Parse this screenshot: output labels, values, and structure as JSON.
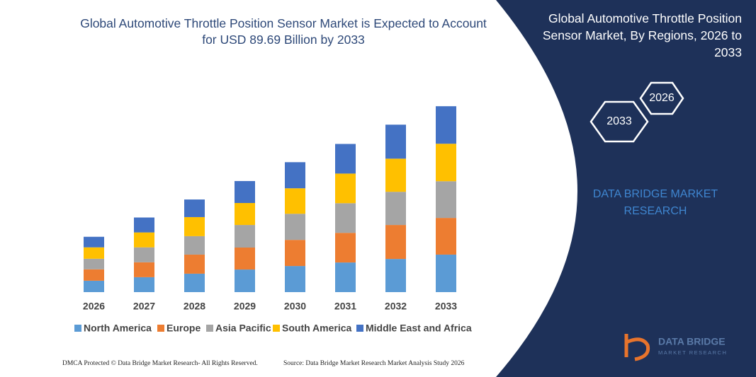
{
  "chart_data": {
    "type": "stacked-bar",
    "title": "Global Automotive Throttle Position Sensor Market is Expected to Account for USD 89.69 Billion by 2033",
    "categories": [
      "2026",
      "2027",
      "2028",
      "2029",
      "2030",
      "2031",
      "2032",
      "2033"
    ],
    "series": [
      {
        "name": "North America",
        "color": "#5b9bd5",
        "values": [
          5.5,
          7.2,
          8.9,
          10.9,
          12.6,
          14.3,
          16.0,
          18.1
        ]
      },
      {
        "name": "Europe",
        "color": "#ed7d31",
        "values": [
          5.5,
          7.2,
          9.2,
          10.6,
          12.6,
          14.3,
          16.4,
          17.7
        ]
      },
      {
        "name": "Asia Pacific",
        "color": "#a5a5a5",
        "values": [
          5.1,
          7.2,
          8.9,
          10.9,
          12.6,
          14.3,
          16.0,
          17.7
        ]
      },
      {
        "name": "South America",
        "color": "#ffc000",
        "values": [
          5.5,
          7.2,
          9.2,
          10.6,
          12.3,
          14.3,
          16.0,
          18.1
        ]
      },
      {
        "name": "Middle East and Africa",
        "color": "#4472c4",
        "values": [
          5.1,
          7.2,
          8.5,
          10.6,
          12.6,
          14.3,
          16.4,
          18.1
        ]
      }
    ],
    "ylim": [
      0,
      100
    ],
    "legend": "bottom"
  },
  "panel": {
    "title": "Global Automotive Throttle Position Sensor Market, By Regions, 2026 to 2033",
    "hexagons": [
      "2026",
      "2033"
    ],
    "brand": "DATA BRIDGE MARKET RESEARCH"
  },
  "logo": {
    "name": "DATA BRIDGE",
    "tagline": "MARKET RESEARCH"
  },
  "footer": {
    "left": "DMCA Protected © Data Bridge Market Research- All Rights Reserved.",
    "right": "Source: Data Bridge Market Research Market Analysis Study 2026"
  }
}
